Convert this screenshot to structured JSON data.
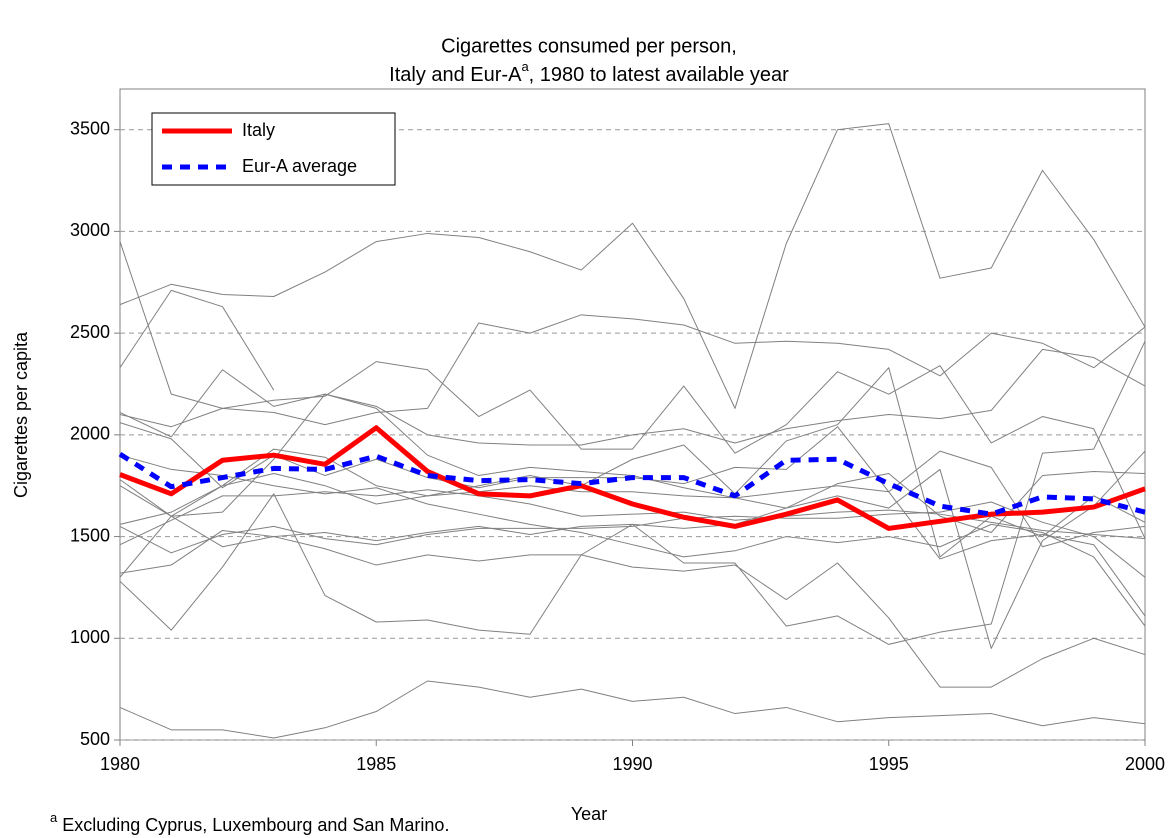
{
  "chart_data": {
    "type": "line",
    "title": [
      "Cigarettes consumed per person,",
      "Italy and Eur-A",
      "a",
      ", 1980 to latest available year"
    ],
    "xlabel": "Year",
    "ylabel": "Cigarettes per capita",
    "footnote": [
      "a",
      " Excluding Cyprus, Luxembourg and San Marino."
    ],
    "x": [
      1980,
      1981,
      1982,
      1983,
      1984,
      1985,
      1986,
      1987,
      1988,
      1989,
      1990,
      1991,
      1992,
      1993,
      1994,
      1995,
      1996,
      1997,
      1998,
      1999,
      2000
    ],
    "xlim": [
      1980,
      2000
    ],
    "xticks": [
      1980,
      1985,
      1990,
      1995,
      2000
    ],
    "ylim": [
      500,
      3700
    ],
    "yticks": [
      500,
      1000,
      1500,
      2000,
      2500,
      3000,
      3500
    ],
    "grid": true,
    "legend": "upper left",
    "series": [
      {
        "color": "#808080",
        "values": [
          2640,
          2740,
          2690,
          2680,
          2800,
          2950,
          2990,
          2970,
          2900,
          2810,
          3040,
          2670,
          2130,
          2940,
          3500,
          3530,
          2770,
          2820,
          3300,
          2960,
          2530
        ]
      },
      {
        "color": "#808080",
        "values": [
          2950,
          2200,
          2130,
          2110,
          2050,
          2110,
          2130,
          2550,
          2500,
          2590,
          2570,
          2540,
          2450,
          2460,
          2450,
          2420,
          2290,
          2500,
          2450,
          2330,
          2530
        ]
      },
      {
        "color": "#808080",
        "values": [
          2330,
          2710,
          2630,
          2220,
          null,
          null,
          null,
          null,
          null,
          null,
          null,
          null,
          null,
          null,
          null,
          null,
          null,
          null,
          null,
          null,
          null
        ]
      },
      {
        "color": "#808080",
        "values": [
          2110,
          1990,
          2320,
          2140,
          2200,
          2140,
          2000,
          1960,
          1950,
          1950,
          2000,
          2030,
          1960,
          2030,
          2070,
          2100,
          2080,
          2120,
          2420,
          2380,
          2240
        ]
      },
      {
        "color": "#808080",
        "values": [
          2100,
          2040,
          2130,
          2170,
          2190,
          2360,
          2320,
          2090,
          2220,
          1930,
          1930,
          2240,
          1910,
          2050,
          2310,
          2200,
          2340,
          1960,
          2090,
          2030,
          1490
        ]
      },
      {
        "color": "#808080",
        "values": [
          1750,
          1600,
          1750,
          1930,
          1890,
          1750,
          1700,
          1750,
          1800,
          1750,
          1880,
          1950,
          1710,
          1970,
          2050,
          2330,
          1400,
          1600,
          1500,
          1700,
          1570
        ]
      },
      {
        "color": "#808080",
        "values": [
          1560,
          1620,
          1750,
          1810,
          1750,
          1660,
          1700,
          1720,
          1750,
          1720,
          1720,
          1700,
          1690,
          1720,
          1750,
          1720,
          1920,
          1840,
          1450,
          1520,
          1550
        ]
      },
      {
        "color": "#808080",
        "values": [
          1460,
          1580,
          1700,
          1700,
          1720,
          1700,
          1730,
          1700,
          1660,
          1600,
          1610,
          1620,
          1580,
          1600,
          1620,
          1630,
          1610,
          1570,
          1530,
          1510,
          1490
        ]
      },
      {
        "color": "#808080",
        "values": [
          1320,
          1360,
          1530,
          1500,
          1520,
          1480,
          1520,
          1550,
          1510,
          1550,
          1560,
          1540,
          1560,
          1640,
          1760,
          1810,
          1600,
          1520,
          1800,
          1820,
          1810
        ]
      },
      {
        "color": "#808080",
        "values": [
          1280,
          1040,
          1350,
          1710,
          1210,
          1080,
          1090,
          1040,
          1020,
          1410,
          1560,
          1370,
          1370,
          1060,
          1110,
          970,
          1030,
          1070,
          1910,
          1930,
          2460
        ]
      },
      {
        "color": "#808080",
        "values": [
          1550,
          1420,
          1510,
          1550,
          1490,
          1460,
          1510,
          1540,
          1540,
          1540,
          1550,
          1590,
          1600,
          1590,
          1590,
          1610,
          1620,
          1670,
          1570,
          1500,
          1300
        ]
      },
      {
        "color": "#808080",
        "values": [
          1300,
          1600,
          1450,
          1500,
          1440,
          1360,
          1410,
          1380,
          1410,
          1410,
          1350,
          1330,
          1360,
          1190,
          1370,
          1100,
          760,
          760,
          900,
          1000,
          920
        ]
      },
      {
        "color": "#808080",
        "values": [
          660,
          550,
          550,
          510,
          560,
          640,
          790,
          760,
          710,
          750,
          690,
          710,
          630,
          660,
          590,
          610,
          620,
          630,
          570,
          610,
          580
        ]
      },
      {
        "color": "#808080",
        "values": [
          1780,
          1600,
          1620,
          1880,
          2200,
          2130,
          1900,
          1800,
          1840,
          1820,
          1800,
          1740,
          1690,
          1640,
          1700,
          1640,
          1830,
          950,
          1480,
          1650,
          1920
        ]
      },
      {
        "color": "#808080",
        "values": [
          2060,
          1980,
          1740,
          1900,
          1800,
          1880,
          1790,
          1740,
          1790,
          1790,
          1790,
          1760,
          1840,
          1830,
          2040,
          1720,
          1390,
          1480,
          1510,
          1460,
          1110
        ]
      },
      {
        "color": "#808080",
        "values": [
          1900,
          1830,
          1800,
          1750,
          1710,
          1740,
          1660,
          1610,
          1560,
          1520,
          1460,
          1400,
          1430,
          1500,
          1470,
          1500,
          1450,
          1560,
          1520,
          1400,
          1060
        ]
      },
      {
        "name": "Italy",
        "color": "#ff0000",
        "values": [
          1805,
          1710,
          1875,
          1900,
          1855,
          2035,
          1820,
          1710,
          1700,
          1750,
          1660,
          1595,
          1550,
          1610,
          1680,
          1540,
          1575,
          1610,
          1620,
          1645,
          1735
        ]
      },
      {
        "name": "Eur-A average",
        "color": "#0000ff",
        "dashed": true,
        "values": [
          1905,
          1745,
          1790,
          1835,
          1830,
          1895,
          1800,
          1775,
          1780,
          1760,
          1790,
          1790,
          1700,
          1875,
          1880,
          1760,
          1650,
          1610,
          1695,
          1685,
          1620
        ]
      }
    ]
  }
}
